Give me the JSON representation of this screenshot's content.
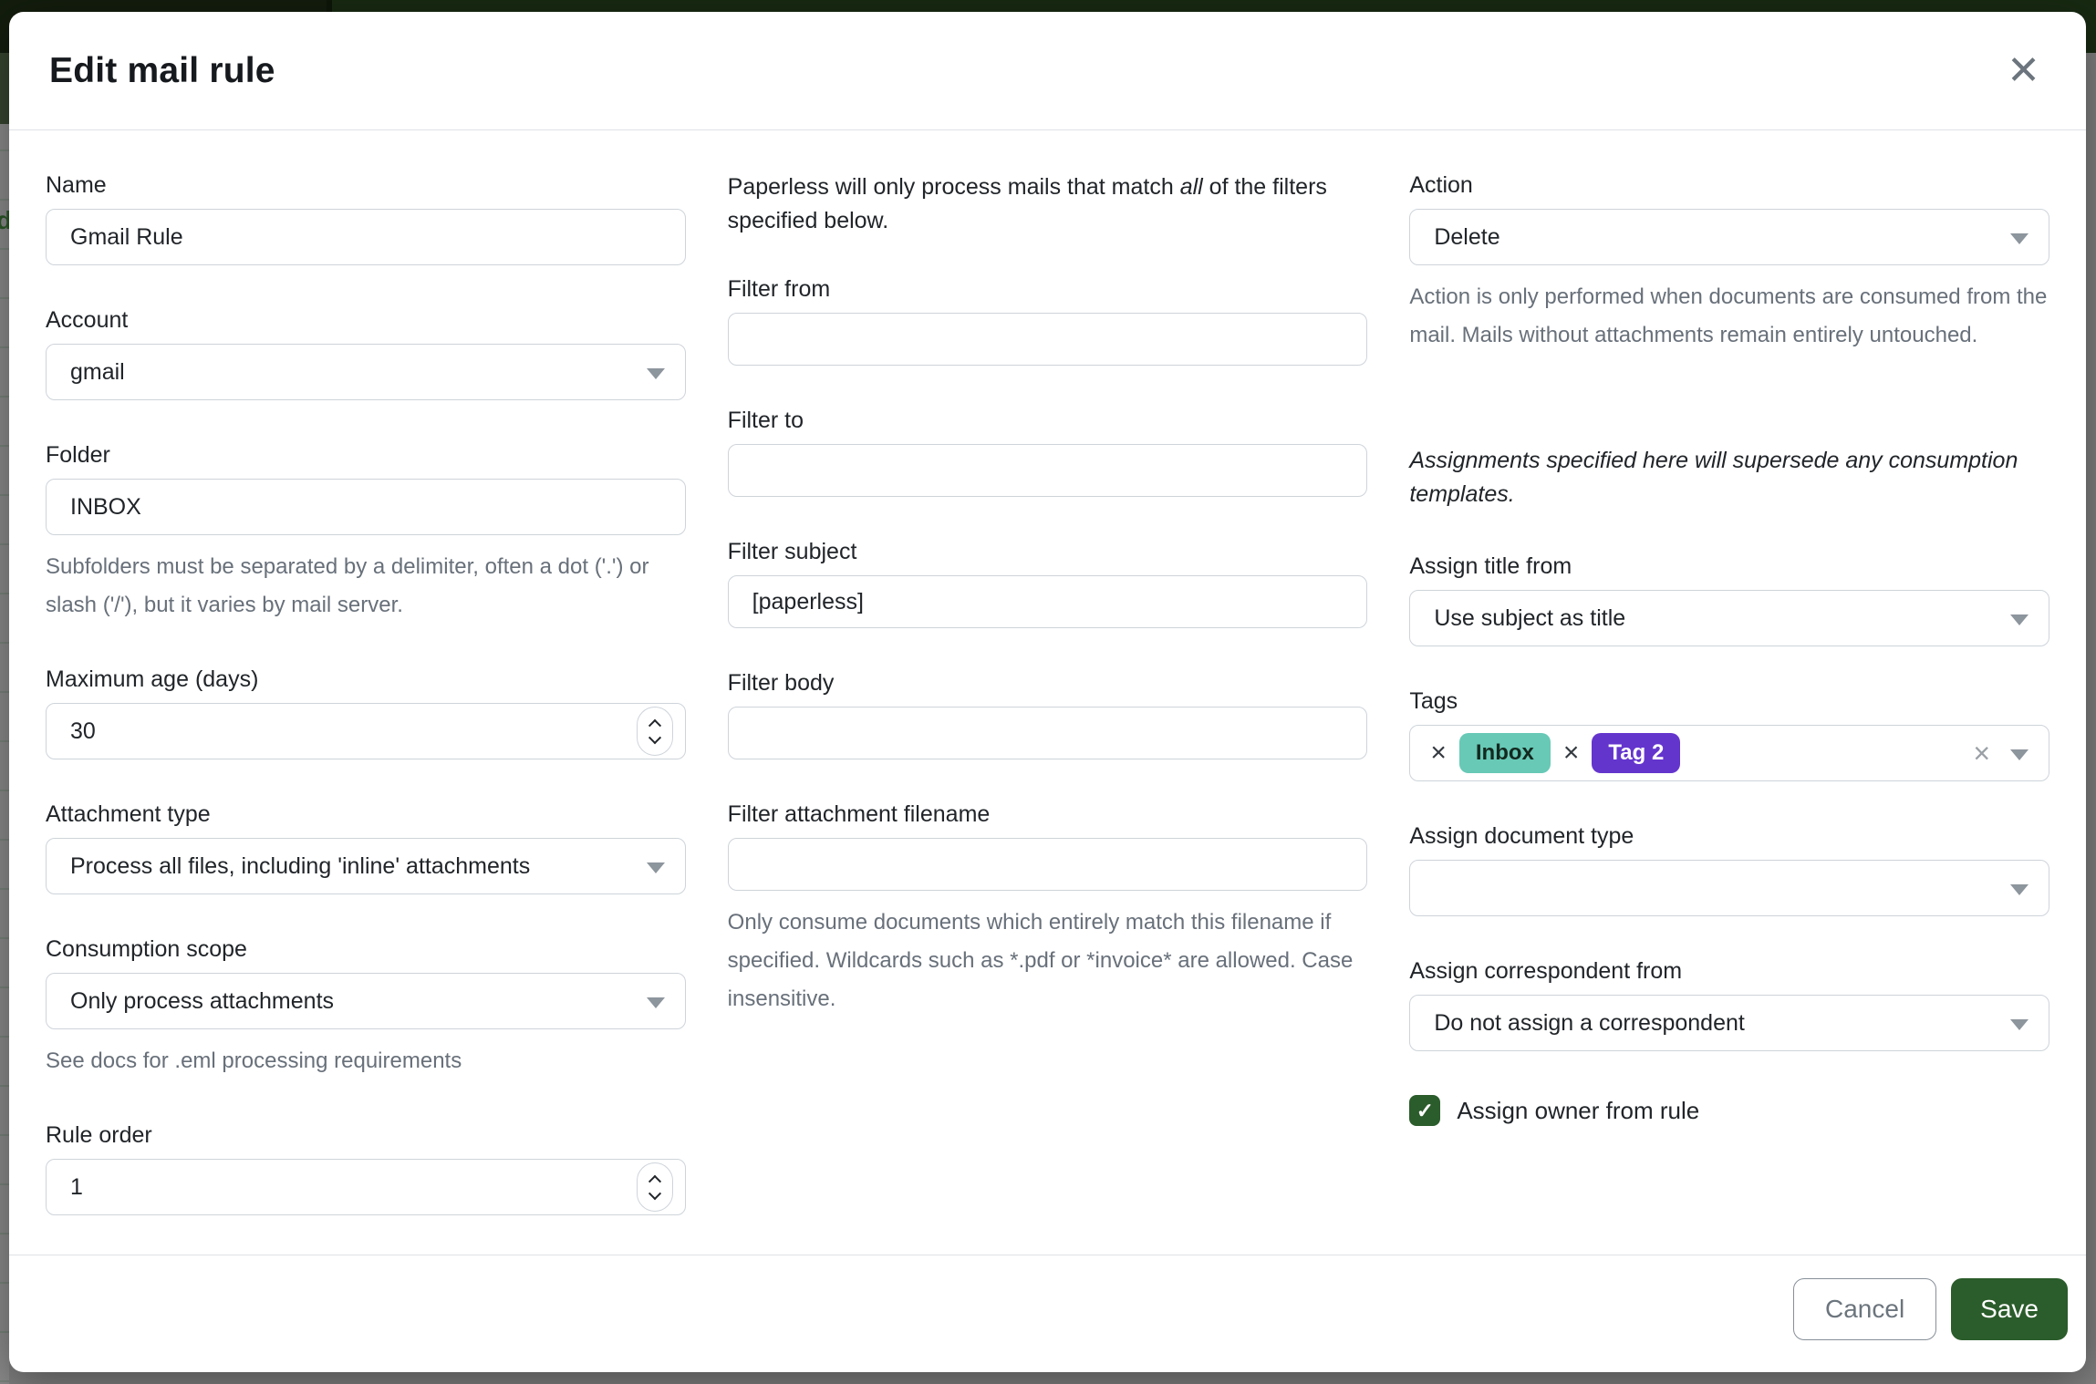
{
  "window": {
    "title": "Edit mail rule"
  },
  "icons": {
    "close": "✕",
    "check": "✓",
    "remove_tag": "×",
    "clear_tags": "×"
  },
  "backdrop": {
    "page_text_fragment": "d"
  },
  "left": {
    "name_label": "Name",
    "name_value": "Gmail Rule",
    "account_label": "Account",
    "account_value": "gmail",
    "folder_label": "Folder",
    "folder_value": "INBOX",
    "folder_help": "Subfolders must be separated by a delimiter, often a dot ('.') or slash ('/'), but it varies by mail server.",
    "max_age_label": "Maximum age (days)",
    "max_age_value": "30",
    "attachment_type_label": "Attachment type",
    "attachment_type_value": "Process all files, including 'inline' attachments",
    "consumption_scope_label": "Consumption scope",
    "consumption_scope_value": "Only process attachments",
    "consumption_scope_help": "See docs for .eml processing requirements",
    "rule_order_label": "Rule order",
    "rule_order_value": "1"
  },
  "middle": {
    "intro_pre": "Paperless will only process mails that match ",
    "intro_emphasis": "all",
    "intro_post": " of the filters specified below.",
    "filter_from_label": "Filter from",
    "filter_from_value": "",
    "filter_to_label": "Filter to",
    "filter_to_value": "",
    "filter_subject_label": "Filter subject",
    "filter_subject_value": "[paperless]",
    "filter_body_label": "Filter body",
    "filter_body_value": "",
    "filter_filename_label": "Filter attachment filename",
    "filter_filename_value": "",
    "filter_filename_help": "Only consume documents which entirely match this filename if specified. Wildcards such as *.pdf or *invoice* are allowed. Case insensitive."
  },
  "right": {
    "action_label": "Action",
    "action_value": "Delete",
    "action_help": "Action is only performed when documents are consumed from the mail. Mails without attachments remain entirely untouched.",
    "assignments_note": "Assignments specified here will supersede any consumption templates.",
    "assign_title_label": "Assign title from",
    "assign_title_value": "Use subject as title",
    "tags_label": "Tags",
    "tags": [
      {
        "name": "Inbox",
        "bg": "#67c9b6",
        "fg": "#13291f"
      },
      {
        "name": "Tag 2",
        "bg": "#6435cd",
        "fg": "#ffffff"
      }
    ],
    "assign_doctype_label": "Assign document type",
    "assign_doctype_value": "",
    "assign_correspondent_label": "Assign correspondent from",
    "assign_correspondent_value": "Do not assign a correspondent",
    "assign_owner_label": "Assign owner from rule",
    "assign_owner_checked": true
  },
  "footer": {
    "cancel_label": "Cancel",
    "save_label": "Save"
  },
  "colors": {
    "primary_green": "#2b5c2b",
    "header_bar_green": "#131d0d",
    "tag_inbox_bg": "#67c9b6",
    "tag_2_bg": "#6435cd",
    "backdrop_gray": "#7f7f7f"
  }
}
